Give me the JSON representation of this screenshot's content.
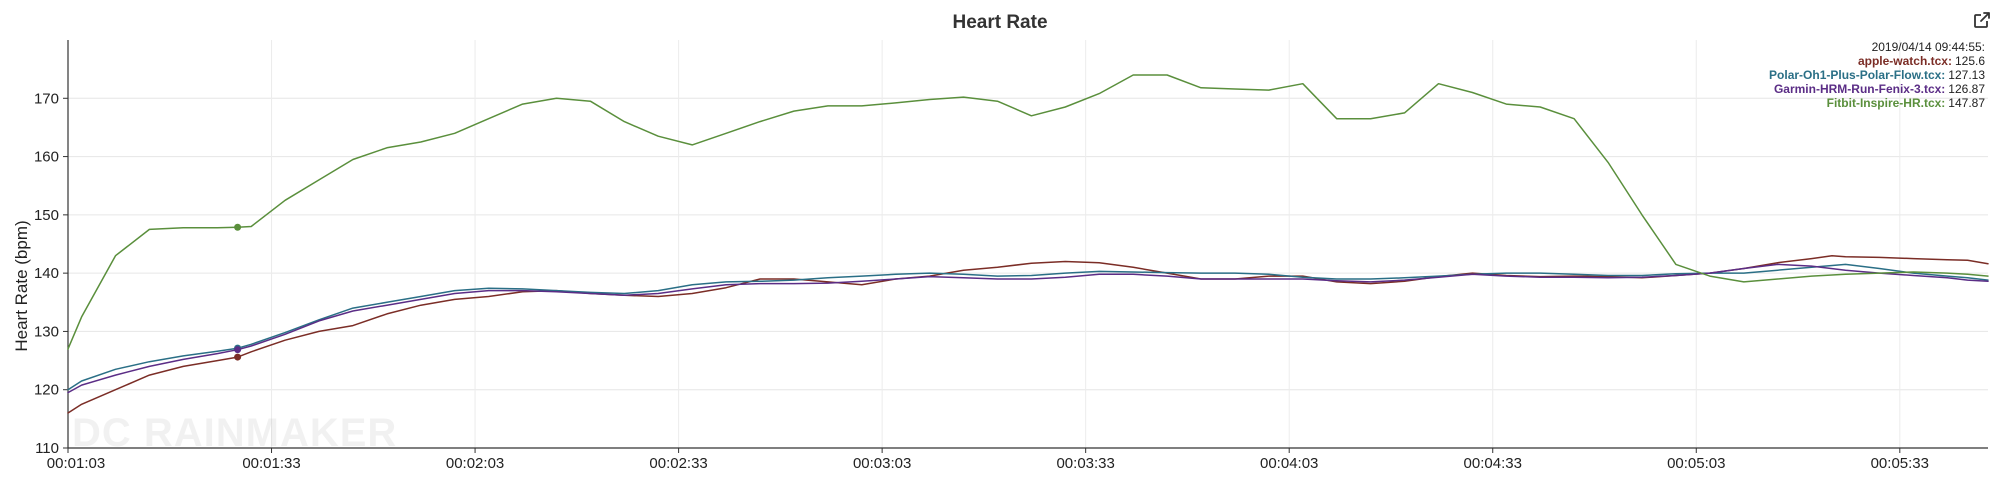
{
  "chart_data": {
    "type": "line",
    "title": "Heart Rate",
    "ylabel": "Heart Rate (bpm)",
    "xlabel": "",
    "ylim": [
      110,
      180
    ],
    "yticks": [
      110,
      120,
      130,
      140,
      150,
      160,
      170
    ],
    "xlim": [
      63,
      346
    ],
    "xtick_values": [
      63,
      93,
      123,
      153,
      183,
      213,
      243,
      273,
      303,
      333
    ],
    "xtick_labels": [
      "00:01:03",
      "00:01:33",
      "00:02:03",
      "00:02:33",
      "00:03:03",
      "00:03:33",
      "00:04:03",
      "00:04:33",
      "00:05:03",
      "00:05:33"
    ],
    "grid": true,
    "legend_position": "top-right",
    "hover": {
      "timestamp": "2019/04/14 09:44:55:",
      "x": 88
    },
    "watermark": "DC RAINMAKER",
    "series": [
      {
        "name": "apple-watch.tcx",
        "hover_value": "125.6",
        "color": "#7b2d26",
        "x": [
          63,
          65,
          70,
          75,
          80,
          85,
          88,
          90,
          95,
          100,
          105,
          110,
          115,
          120,
          125,
          130,
          135,
          140,
          145,
          150,
          155,
          160,
          165,
          170,
          175,
          180,
          185,
          190,
          195,
          200,
          205,
          210,
          215,
          220,
          225,
          230,
          235,
          240,
          245,
          250,
          255,
          260,
          265,
          270,
          275,
          280,
          285,
          290,
          295,
          300,
          305,
          310,
          315,
          320,
          323,
          325,
          330,
          335,
          340,
          343,
          346
        ],
        "y": [
          116,
          117.5,
          120,
          122.5,
          124,
          125,
          125.6,
          126.5,
          128.5,
          130,
          131,
          133,
          134.5,
          135.5,
          136,
          136.8,
          137,
          136.5,
          136.2,
          136,
          136.5,
          137.5,
          139,
          139,
          138.5,
          138,
          139,
          139.5,
          140.5,
          141,
          141.7,
          142,
          141.8,
          141,
          140,
          139,
          139,
          139.5,
          139.5,
          138.5,
          138.2,
          138.6,
          139.4,
          140,
          139.6,
          139.4,
          139.5,
          139.4,
          139.2,
          139.6,
          140,
          140.8,
          141.8,
          142.5,
          143,
          142.8,
          142.7,
          142.5,
          142.3,
          142.2,
          141.6
        ]
      },
      {
        "name": "Polar-Oh1-Plus-Polar-Flow.tcx",
        "hover_value": "127.13",
        "color": "#2a6f86",
        "x": [
          63,
          65,
          70,
          75,
          80,
          85,
          88,
          90,
          95,
          100,
          105,
          110,
          115,
          120,
          125,
          130,
          135,
          140,
          145,
          150,
          155,
          160,
          165,
          170,
          175,
          180,
          185,
          190,
          195,
          200,
          205,
          210,
          215,
          220,
          225,
          230,
          235,
          240,
          245,
          250,
          255,
          260,
          265,
          270,
          275,
          280,
          285,
          290,
          295,
          300,
          305,
          310,
          315,
          320,
          325,
          330,
          335,
          340,
          343,
          346
        ],
        "y": [
          120,
          121.5,
          123.5,
          124.8,
          125.8,
          126.6,
          127.13,
          127.8,
          129.8,
          132,
          134,
          135,
          136,
          137,
          137.4,
          137.3,
          137,
          136.7,
          136.5,
          137,
          138,
          138.5,
          138.6,
          138.8,
          139.2,
          139.5,
          139.8,
          140,
          139.8,
          139.5,
          139.6,
          140,
          140.3,
          140.2,
          140.1,
          140,
          140,
          139.8,
          139.3,
          139,
          139,
          139.2,
          139.5,
          139.8,
          140,
          140,
          139.8,
          139.6,
          139.6,
          139.9,
          140,
          140,
          140.5,
          141,
          141.5,
          140.8,
          140,
          139.5,
          139.2,
          138.8
        ]
      },
      {
        "name": "Garmin-HRM-Run-Fenix-3.tcx",
        "hover_value": "126.87",
        "color": "#5b2d86",
        "x": [
          63,
          65,
          70,
          75,
          80,
          85,
          88,
          90,
          95,
          100,
          105,
          110,
          115,
          120,
          125,
          130,
          135,
          140,
          145,
          150,
          155,
          160,
          165,
          170,
          175,
          180,
          185,
          190,
          195,
          200,
          205,
          210,
          215,
          220,
          225,
          230,
          235,
          240,
          245,
          250,
          255,
          260,
          265,
          270,
          275,
          280,
          285,
          290,
          295,
          300,
          305,
          310,
          315,
          320,
          325,
          330,
          335,
          340,
          343,
          346
        ],
        "y": [
          119.5,
          120.8,
          122.5,
          124,
          125.2,
          126.2,
          126.87,
          127.5,
          129.5,
          131.8,
          133.5,
          134.5,
          135.5,
          136.5,
          137,
          137,
          136.8,
          136.5,
          136.2,
          136.5,
          137.3,
          138,
          138.2,
          138.2,
          138.3,
          138.6,
          139,
          139.4,
          139.2,
          139,
          139,
          139.3,
          139.8,
          139.8,
          139.5,
          139,
          139,
          139,
          139,
          138.7,
          138.5,
          138.8,
          139.3,
          139.8,
          139.5,
          139.3,
          139.3,
          139.2,
          139.3,
          139.6,
          140,
          140.8,
          141.5,
          141.2,
          140.5,
          140,
          139.6,
          139.2,
          138.8,
          138.6
        ]
      },
      {
        "name": "Fitbit-Inspire-HR.tcx",
        "hover_value": "147.87",
        "color": "#5a8f3c",
        "x": [
          63,
          65,
          70,
          75,
          80,
          85,
          88,
          90,
          95,
          100,
          105,
          110,
          115,
          120,
          125,
          130,
          135,
          140,
          145,
          150,
          155,
          160,
          165,
          170,
          175,
          180,
          185,
          190,
          195,
          200,
          205,
          210,
          215,
          220,
          225,
          230,
          235,
          240,
          245,
          250,
          255,
          260,
          265,
          270,
          275,
          280,
          285,
          290,
          295,
          300,
          305,
          310,
          315,
          320,
          325,
          330,
          335,
          340,
          343,
          346
        ],
        "y": [
          127,
          132.5,
          143,
          147.5,
          147.8,
          147.8,
          147.87,
          148,
          152.5,
          156,
          159.5,
          161.5,
          162.5,
          164,
          166.5,
          169,
          170,
          169.5,
          166,
          163.5,
          162,
          164,
          166,
          167.8,
          168.7,
          168.7,
          169.2,
          169.8,
          170.2,
          169.5,
          167,
          168.5,
          170.8,
          174,
          174,
          171.8,
          171.6,
          171.4,
          172.5,
          166.5,
          166.5,
          167.5,
          172.5,
          171,
          169,
          168.5,
          166.5,
          159,
          150,
          141.5,
          139.5,
          138.5,
          139,
          139.5,
          139.8,
          140,
          140.2,
          140,
          139.8,
          139.5
        ]
      }
    ]
  }
}
